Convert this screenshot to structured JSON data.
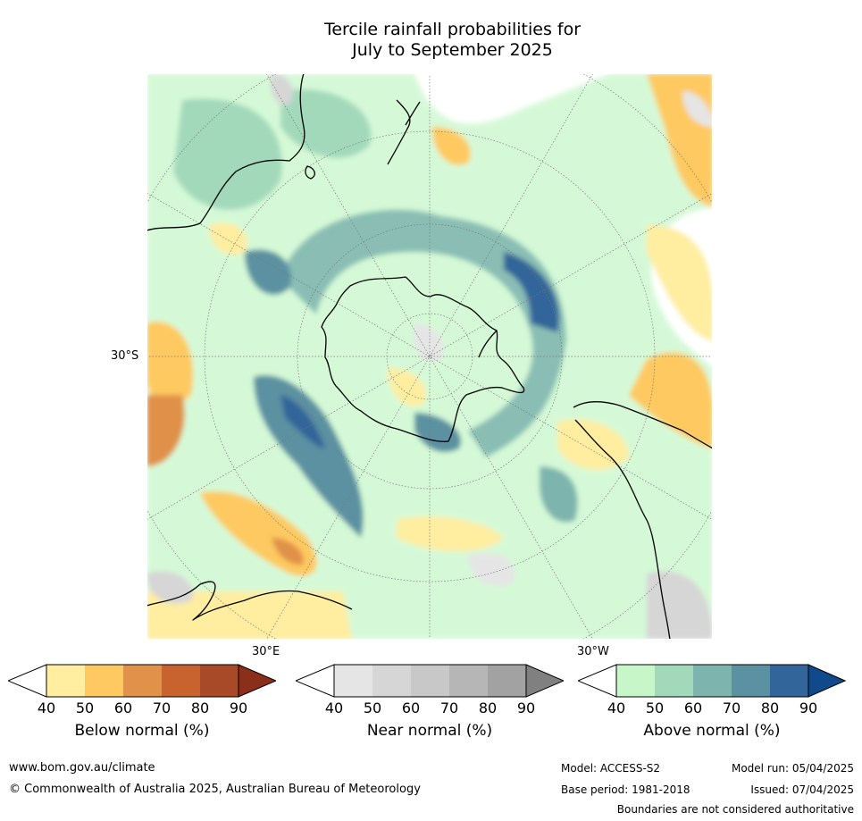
{
  "title": {
    "line1": "Tercile rainfall probabilities for",
    "line2": "July to September 2025"
  },
  "map": {
    "labels": {
      "lat_left": "30°S",
      "lon_bottom_left": "30°E",
      "lon_bottom_right": "30°W"
    },
    "colors": {
      "ocean_background": "#ffffff",
      "coastline": "#000000",
      "graticule": "#777777"
    }
  },
  "colorbars": [
    {
      "name": "Below normal (%)",
      "ticks": [
        "40",
        "50",
        "60",
        "70",
        "80",
        "90"
      ],
      "colors": [
        "#ffffff",
        "#ffeda0",
        "#fec960",
        "#e0914a",
        "#c8622f",
        "#a84a27",
        "#8b2e1a"
      ]
    },
    {
      "name": "Near normal (%)",
      "ticks": [
        "40",
        "50",
        "60",
        "70",
        "80",
        "90"
      ],
      "colors": [
        "#ffffff",
        "#e5e5e5",
        "#d6d6d6",
        "#c8c8c8",
        "#b6b6b6",
        "#a2a2a2",
        "#808080"
      ]
    },
    {
      "name": "Above normal (%)",
      "ticks": [
        "40",
        "50",
        "60",
        "70",
        "80",
        "90"
      ],
      "colors": [
        "#ffffff",
        "#c7f7c9",
        "#a3d9bb",
        "#7eb4ae",
        "#5b91a1",
        "#326599",
        "#114a8a"
      ]
    }
  ],
  "footer": {
    "url": "www.bom.gov.au/climate",
    "copyright": "© Commonwealth of Australia 2025, Australian Bureau of Meteorology",
    "model": "Model: ACCESS-S2",
    "model_run": "Model run: 05/04/2025",
    "base_period": "Base period: 1981-2018",
    "issued": "Issued: 07/04/2025",
    "disclaimer": "Boundaries are not considered authoritative"
  }
}
